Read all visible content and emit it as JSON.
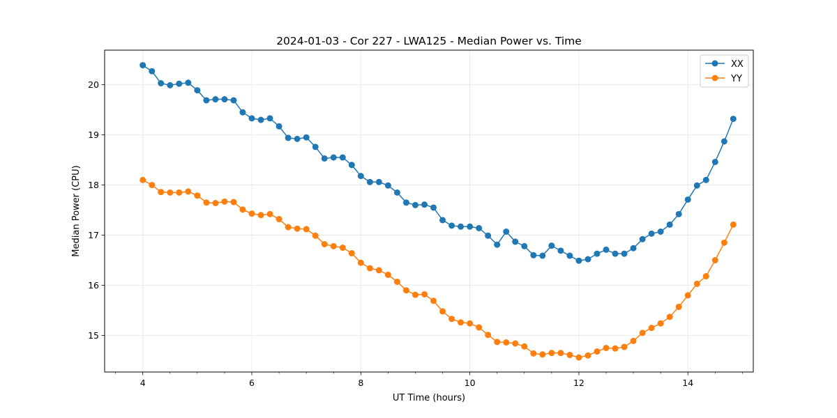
{
  "chart_data": {
    "type": "line",
    "title": "2024-01-03 - Cor 227 - LWA125 - Median Power vs. Time",
    "xlabel": "UT Time (hours)",
    "ylabel": "Median Power (CPU)",
    "xlim": [
      3.3,
      15.2
    ],
    "ylim": [
      14.27,
      20.69
    ],
    "xticks": [
      4,
      6,
      8,
      10,
      12,
      14
    ],
    "xtick_labels": [
      "4",
      "6",
      "8",
      "10",
      "12",
      "14"
    ],
    "yticks": [
      15,
      16,
      17,
      18,
      19,
      20
    ],
    "ytick_labels": [
      "15",
      "16",
      "17",
      "18",
      "19",
      "20"
    ],
    "grid": true,
    "legend_position": "top-right",
    "x": [
      4.0,
      4.167,
      4.333,
      4.5,
      4.667,
      4.833,
      5.0,
      5.167,
      5.333,
      5.5,
      5.667,
      5.833,
      6.0,
      6.167,
      6.333,
      6.5,
      6.667,
      6.833,
      7.0,
      7.167,
      7.333,
      7.5,
      7.667,
      7.833,
      8.0,
      8.167,
      8.333,
      8.5,
      8.667,
      8.833,
      9.0,
      9.167,
      9.333,
      9.5,
      9.667,
      9.833,
      10.0,
      10.167,
      10.333,
      10.5,
      10.667,
      10.833,
      11.0,
      11.167,
      11.333,
      11.5,
      11.667,
      11.833,
      12.0,
      12.167,
      12.333,
      12.5,
      12.667,
      12.833,
      13.0,
      13.167,
      13.333,
      13.5,
      13.667,
      13.833,
      14.0,
      14.167,
      14.333,
      14.5,
      14.667,
      14.833
    ],
    "series": [
      {
        "name": "XX",
        "color": "#1f77b4",
        "values": [
          20.39,
          20.27,
          20.03,
          19.99,
          20.02,
          20.04,
          19.89,
          19.69,
          19.71,
          19.71,
          19.69,
          19.45,
          19.33,
          19.3,
          19.33,
          19.17,
          18.94,
          18.92,
          18.95,
          18.76,
          18.53,
          18.55,
          18.55,
          18.4,
          18.18,
          18.06,
          18.06,
          17.99,
          17.85,
          17.65,
          17.6,
          17.61,
          17.55,
          17.3,
          17.19,
          17.17,
          17.17,
          17.14,
          16.99,
          16.81,
          17.07,
          16.87,
          16.78,
          16.6,
          16.59,
          16.79,
          16.69,
          16.59,
          16.49,
          16.52,
          16.63,
          16.71,
          16.63,
          16.63,
          16.74,
          16.92,
          17.03,
          17.07,
          17.21,
          17.42,
          17.71,
          17.99,
          18.1,
          18.46,
          18.87,
          19.32
        ]
      },
      {
        "name": "YY",
        "color": "#ff7f0e",
        "values": [
          18.1,
          18.0,
          17.86,
          17.85,
          17.85,
          17.87,
          17.79,
          17.65,
          17.64,
          17.67,
          17.66,
          17.51,
          17.43,
          17.4,
          17.42,
          17.32,
          17.16,
          17.13,
          17.12,
          16.99,
          16.82,
          16.78,
          16.75,
          16.64,
          16.45,
          16.34,
          16.3,
          16.21,
          16.07,
          15.9,
          15.81,
          15.82,
          15.69,
          15.48,
          15.33,
          15.26,
          15.24,
          15.16,
          15.01,
          14.87,
          14.86,
          14.84,
          14.78,
          14.64,
          14.62,
          14.65,
          14.65,
          14.61,
          14.56,
          14.6,
          14.68,
          14.75,
          14.74,
          14.77,
          14.89,
          15.05,
          15.15,
          15.24,
          15.37,
          15.57,
          15.8,
          16.03,
          16.18,
          16.5,
          16.85,
          17.21
        ]
      }
    ]
  }
}
